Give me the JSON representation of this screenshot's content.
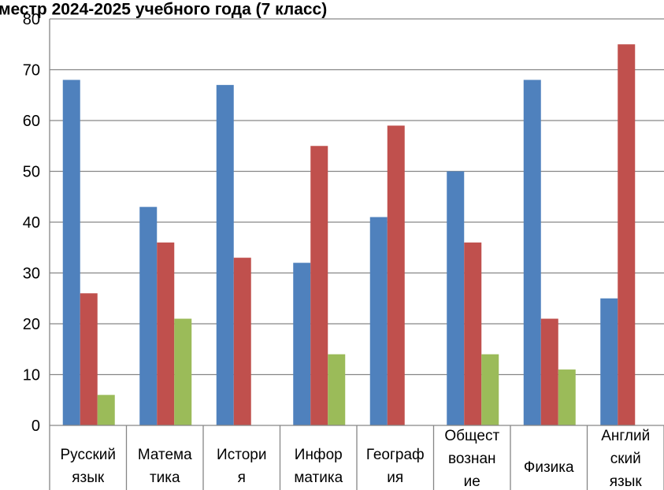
{
  "chart_data": {
    "type": "bar",
    "title": "местр 2024-2025 учебного года (7 класс)",
    "xlabel": "",
    "ylabel": "",
    "ylim": [
      0,
      80
    ],
    "yticks": [
      0,
      10,
      20,
      30,
      40,
      50,
      60,
      70,
      80
    ],
    "grid": true,
    "legend": "none",
    "categories": [
      [
        "Русский",
        "язык"
      ],
      [
        "Матема",
        "тика"
      ],
      [
        "Истори",
        "я"
      ],
      [
        "Инфор",
        "матика"
      ],
      [
        "Географ",
        "ия"
      ],
      [
        "Общест",
        "вознан",
        "ие"
      ],
      [
        "Физика"
      ],
      [
        "Англий",
        "ский",
        "язык"
      ]
    ],
    "series": [
      {
        "color": "#4f81bd",
        "values": [
          68,
          43,
          67,
          32,
          41,
          50,
          68,
          25
        ]
      },
      {
        "color": "#c0504d",
        "values": [
          26,
          36,
          33,
          55,
          59,
          36,
          21,
          75
        ]
      },
      {
        "color": "#9bbb59",
        "values": [
          6,
          21,
          0,
          14,
          0,
          14,
          11,
          0
        ]
      }
    ]
  }
}
